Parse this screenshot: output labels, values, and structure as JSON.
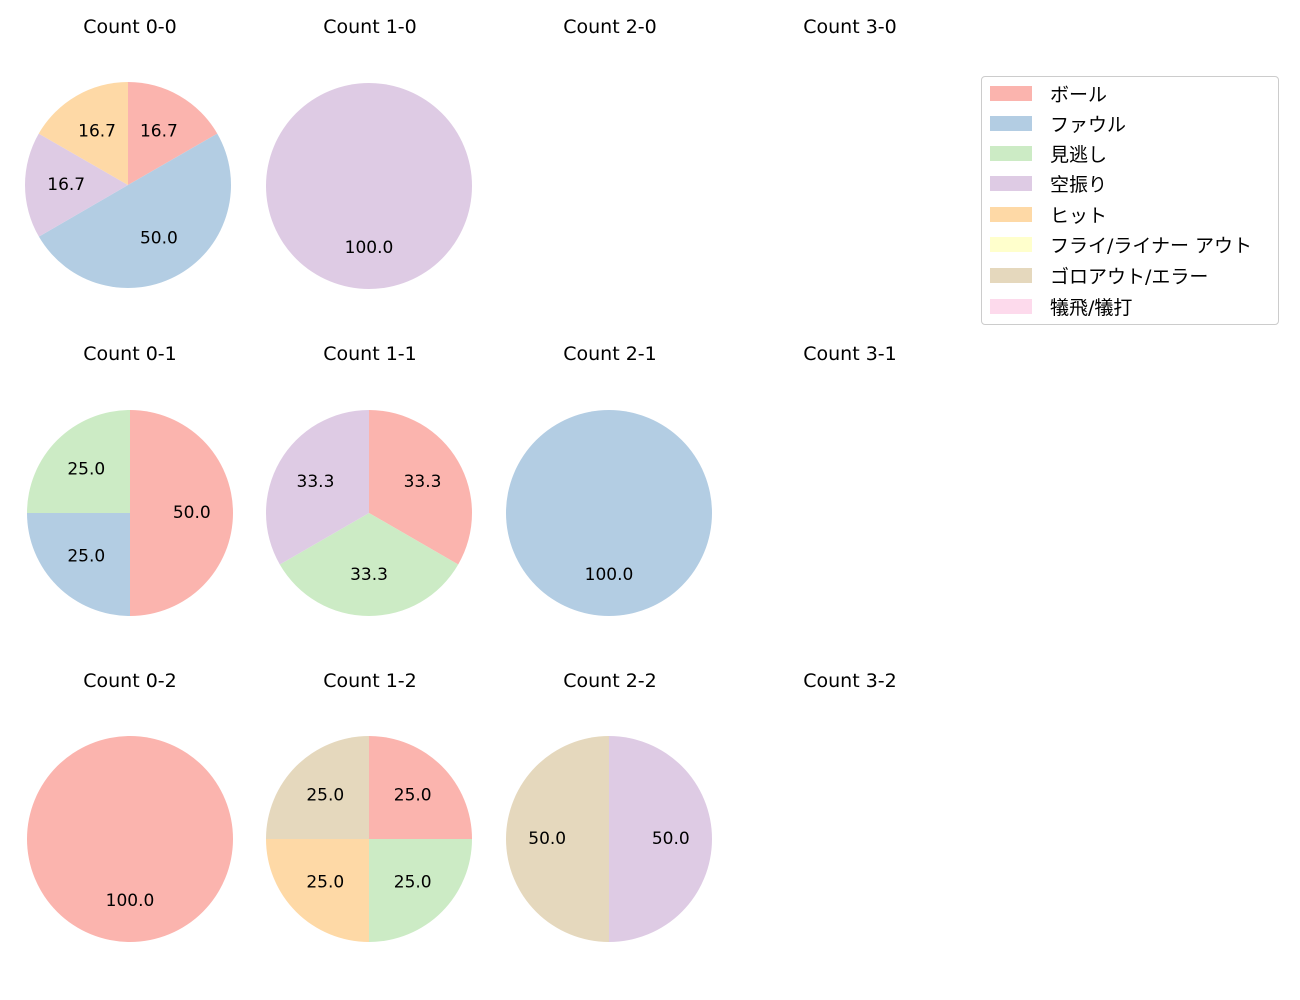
{
  "chart_data": {
    "type": "pie",
    "start_angle": 90,
    "direction": "clockwise",
    "legend": {
      "position": "upper right",
      "entries": [
        {
          "label": "ボール",
          "color": "#fbb4ae"
        },
        {
          "label": "ファウル",
          "color": "#b3cde3"
        },
        {
          "label": "見逃し",
          "color": "#ccebc5"
        },
        {
          "label": "空振り",
          "color": "#decbe4"
        },
        {
          "label": "ヒット",
          "color": "#fed9a6"
        },
        {
          "label": "フライ/ライナー アウト",
          "color": "#ffffcc"
        },
        {
          "label": "ゴロアウト/エラー",
          "color": "#e5d8bd"
        },
        {
          "label": "犠飛/犠打",
          "color": "#fddaec"
        }
      ]
    },
    "panels": [
      {
        "title": "Count 0-0",
        "slices": [
          {
            "category": "ボール",
            "value": 16.7
          },
          {
            "category": "ファウル",
            "value": 50.0
          },
          {
            "category": "空振り",
            "value": 16.7
          },
          {
            "category": "ヒット",
            "value": 16.7
          }
        ]
      },
      {
        "title": "Count 1-0",
        "slices": [
          {
            "category": "空振り",
            "value": 100.0
          }
        ]
      },
      {
        "title": "Count 2-0",
        "slices": []
      },
      {
        "title": "Count 3-0",
        "slices": []
      },
      {
        "title": "Count 0-1",
        "slices": [
          {
            "category": "ボール",
            "value": 50.0
          },
          {
            "category": "ファウル",
            "value": 25.0
          },
          {
            "category": "見逃し",
            "value": 25.0
          }
        ]
      },
      {
        "title": "Count 1-1",
        "slices": [
          {
            "category": "ボール",
            "value": 33.3
          },
          {
            "category": "見逃し",
            "value": 33.3
          },
          {
            "category": "空振り",
            "value": 33.3
          }
        ]
      },
      {
        "title": "Count 2-1",
        "slices": [
          {
            "category": "ファウル",
            "value": 100.0
          }
        ]
      },
      {
        "title": "Count 3-1",
        "slices": []
      },
      {
        "title": "Count 0-2",
        "slices": [
          {
            "category": "ボール",
            "value": 100.0
          }
        ]
      },
      {
        "title": "Count 1-2",
        "slices": [
          {
            "category": "ボール",
            "value": 25.0
          },
          {
            "category": "見逃し",
            "value": 25.0
          },
          {
            "category": "ヒット",
            "value": 25.0
          },
          {
            "category": "ゴロアウト/エラー",
            "value": 25.0
          }
        ]
      },
      {
        "title": "Count 2-2",
        "slices": [
          {
            "category": "空振り",
            "value": 50.0
          },
          {
            "category": "ゴロアウト/エラー",
            "value": 50.0
          }
        ]
      },
      {
        "title": "Count 3-2",
        "slices": []
      }
    ]
  },
  "panel_titles": [
    "Count 0-0",
    "Count 1-0",
    "Count 2-0",
    "Count 3-0",
    "Count 0-1",
    "Count 1-1",
    "Count 2-1",
    "Count 3-1",
    "Count 0-2",
    "Count 1-2",
    "Count 2-2",
    "Count 3-2"
  ],
  "legend_labels": [
    "ボール",
    "ファウル",
    "見逃し",
    "空振り",
    "ヒット",
    "フライ/ライナー アウト",
    "ゴロアウト/エラー",
    "犠飛/犠打"
  ]
}
